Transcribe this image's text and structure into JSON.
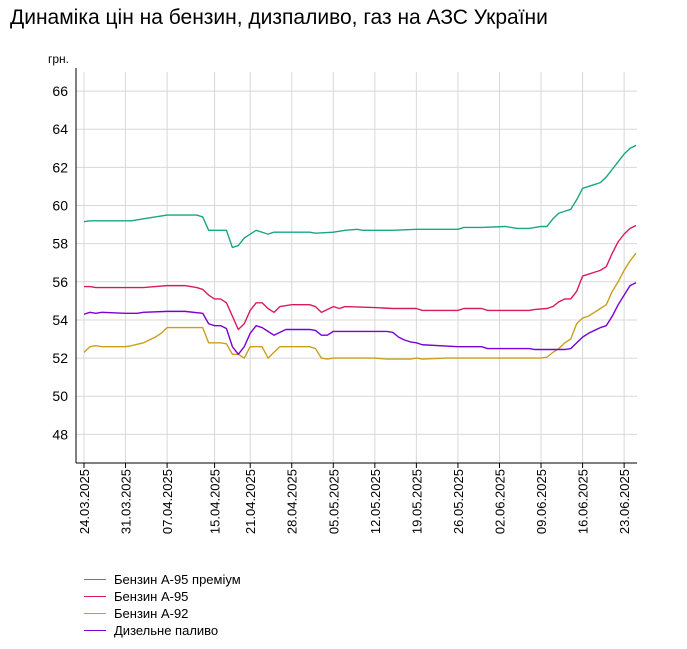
{
  "title": "Динаміка цін на бензин, дизпаливо, газ на АЗС України",
  "chart_data": {
    "type": "line",
    "title": "Динаміка цін на бензин, дизпаливо, газ на АЗС України",
    "ylabel": "грн.",
    "xlabel": "",
    "ylim": [
      46.5,
      67
    ],
    "yticks": [
      48,
      50,
      52,
      54,
      56,
      58,
      60,
      62,
      64,
      66
    ],
    "x_start": "24.03.2025",
    "x_end": "25.06.2025",
    "x_ticks": [
      "24.03.2025",
      "31.03.2025",
      "07.04.2025",
      "15.04.2025",
      "21.04.2025",
      "28.04.2025",
      "05.05.2025",
      "12.05.2025",
      "19.05.2025",
      "26.05.2025",
      "02.06.2025",
      "09.06.2025",
      "16.06.2025",
      "23.06.2025"
    ],
    "grid": true,
    "legend_position": "bottom-left",
    "series": [
      {
        "name": "Бензин А-95 преміум",
        "color": "#1aa585",
        "points": [
          [
            "24.03.2025",
            59.15
          ],
          [
            "25.03.2025",
            59.2
          ],
          [
            "28.03.2025",
            59.2
          ],
          [
            "01.04.2025",
            59.2
          ],
          [
            "03.04.2025",
            59.3
          ],
          [
            "05.04.2025",
            59.4
          ],
          [
            "07.04.2025",
            59.5
          ],
          [
            "09.04.2025",
            59.5
          ],
          [
            "12.04.2025",
            59.5
          ],
          [
            "13.04.2025",
            59.4
          ],
          [
            "14.04.2025",
            58.7
          ],
          [
            "15.04.2025",
            58.7
          ],
          [
            "17.04.2025",
            58.7
          ],
          [
            "18.04.2025",
            57.8
          ],
          [
            "19.04.2025",
            57.9
          ],
          [
            "20.04.2025",
            58.3
          ],
          [
            "22.04.2025",
            58.7
          ],
          [
            "24.04.2025",
            58.5
          ],
          [
            "25.04.2025",
            58.6
          ],
          [
            "28.04.2025",
            58.6
          ],
          [
            "01.05.2025",
            58.6
          ],
          [
            "02.05.2025",
            58.55
          ],
          [
            "05.05.2025",
            58.6
          ],
          [
            "07.05.2025",
            58.7
          ],
          [
            "09.05.2025",
            58.75
          ],
          [
            "10.05.2025",
            58.7
          ],
          [
            "12.05.2025",
            58.7
          ],
          [
            "15.05.2025",
            58.7
          ],
          [
            "19.05.2025",
            58.75
          ],
          [
            "23.05.2025",
            58.75
          ],
          [
            "26.05.2025",
            58.75
          ],
          [
            "27.05.2025",
            58.85
          ],
          [
            "30.05.2025",
            58.85
          ],
          [
            "03.06.2025",
            58.9
          ],
          [
            "05.06.2025",
            58.8
          ],
          [
            "07.06.2025",
            58.8
          ],
          [
            "09.06.2025",
            58.9
          ],
          [
            "10.06.2025",
            58.9
          ],
          [
            "11.06.2025",
            59.3
          ],
          [
            "12.06.2025",
            59.6
          ],
          [
            "13.06.2025",
            59.7
          ],
          [
            "14.06.2025",
            59.8
          ],
          [
            "15.06.2025",
            60.3
          ],
          [
            "16.06.2025",
            60.9
          ],
          [
            "17.06.2025",
            61.0
          ],
          [
            "18.06.2025",
            61.1
          ],
          [
            "19.06.2025",
            61.2
          ],
          [
            "20.06.2025",
            61.5
          ],
          [
            "21.06.2025",
            61.9
          ],
          [
            "22.06.2025",
            62.3
          ],
          [
            "23.06.2025",
            62.7
          ],
          [
            "24.06.2025",
            63.0
          ],
          [
            "25.06.2025",
            63.15
          ]
        ]
      },
      {
        "name": "Бензин А-95",
        "color": "#d81b60",
        "points": [
          [
            "24.03.2025",
            55.75
          ],
          [
            "25.03.2025",
            55.75
          ],
          [
            "26.03.2025",
            55.7
          ],
          [
            "31.03.2025",
            55.7
          ],
          [
            "03.04.2025",
            55.7
          ],
          [
            "05.04.2025",
            55.75
          ],
          [
            "07.04.2025",
            55.8
          ],
          [
            "10.04.2025",
            55.8
          ],
          [
            "12.04.2025",
            55.7
          ],
          [
            "13.04.2025",
            55.6
          ],
          [
            "14.04.2025",
            55.3
          ],
          [
            "15.04.2025",
            55.1
          ],
          [
            "16.04.2025",
            55.1
          ],
          [
            "17.04.2025",
            54.9
          ],
          [
            "18.04.2025",
            54.2
          ],
          [
            "19.04.2025",
            53.5
          ],
          [
            "20.04.2025",
            53.8
          ],
          [
            "21.04.2025",
            54.5
          ],
          [
            "22.04.2025",
            54.9
          ],
          [
            "23.04.2025",
            54.9
          ],
          [
            "24.04.2025",
            54.6
          ],
          [
            "25.04.2025",
            54.4
          ],
          [
            "26.04.2025",
            54.7
          ],
          [
            "28.04.2025",
            54.8
          ],
          [
            "01.05.2025",
            54.8
          ],
          [
            "02.05.2025",
            54.7
          ],
          [
            "03.05.2025",
            54.4
          ],
          [
            "05.05.2025",
            54.7
          ],
          [
            "06.05.2025",
            54.6
          ],
          [
            "07.05.2025",
            54.7
          ],
          [
            "12.05.2025",
            54.65
          ],
          [
            "15.05.2025",
            54.6
          ],
          [
            "19.05.2025",
            54.6
          ],
          [
            "20.05.2025",
            54.5
          ],
          [
            "26.05.2025",
            54.5
          ],
          [
            "27.05.2025",
            54.6
          ],
          [
            "30.05.2025",
            54.6
          ],
          [
            "31.05.2025",
            54.5
          ],
          [
            "02.06.2025",
            54.5
          ],
          [
            "07.06.2025",
            54.5
          ],
          [
            "08.06.2025",
            54.55
          ],
          [
            "10.06.2025",
            54.6
          ],
          [
            "11.06.2025",
            54.7
          ],
          [
            "12.06.2025",
            54.95
          ],
          [
            "13.06.2025",
            55.1
          ],
          [
            "14.06.2025",
            55.1
          ],
          [
            "15.06.2025",
            55.5
          ],
          [
            "16.06.2025",
            56.3
          ],
          [
            "17.06.2025",
            56.4
          ],
          [
            "18.06.2025",
            56.5
          ],
          [
            "19.06.2025",
            56.6
          ],
          [
            "20.06.2025",
            56.8
          ],
          [
            "21.06.2025",
            57.5
          ],
          [
            "22.06.2025",
            58.1
          ],
          [
            "23.06.2025",
            58.5
          ],
          [
            "24.06.2025",
            58.8
          ],
          [
            "25.06.2025",
            58.95
          ]
        ]
      },
      {
        "name": "Бензин А-92",
        "color": "#c8a01e",
        "points": [
          [
            "24.03.2025",
            52.3
          ],
          [
            "25.03.2025",
            52.6
          ],
          [
            "26.03.2025",
            52.65
          ],
          [
            "27.03.2025",
            52.6
          ],
          [
            "31.03.2025",
            52.6
          ],
          [
            "01.04.2025",
            52.65
          ],
          [
            "03.04.2025",
            52.8
          ],
          [
            "05.04.2025",
            53.1
          ],
          [
            "06.04.2025",
            53.3
          ],
          [
            "07.04.2025",
            53.6
          ],
          [
            "11.04.2025",
            53.6
          ],
          [
            "13.04.2025",
            53.6
          ],
          [
            "14.04.2025",
            52.8
          ],
          [
            "15.04.2025",
            52.8
          ],
          [
            "16.04.2025",
            52.8
          ],
          [
            "17.04.2025",
            52.75
          ],
          [
            "18.04.2025",
            52.2
          ],
          [
            "19.04.2025",
            52.2
          ],
          [
            "20.04.2025",
            52.0
          ],
          [
            "21.04.2025",
            52.6
          ],
          [
            "22.04.2025",
            52.6
          ],
          [
            "23.04.2025",
            52.6
          ],
          [
            "24.04.2025",
            52.0
          ],
          [
            "25.04.2025",
            52.3
          ],
          [
            "26.04.2025",
            52.6
          ],
          [
            "01.05.2025",
            52.6
          ],
          [
            "02.05.2025",
            52.5
          ],
          [
            "03.05.2025",
            52.0
          ],
          [
            "04.05.2025",
            51.95
          ],
          [
            "05.05.2025",
            52.0
          ],
          [
            "12.05.2025",
            52.0
          ],
          [
            "14.05.2025",
            51.95
          ],
          [
            "18.05.2025",
            51.95
          ],
          [
            "19.05.2025",
            52.0
          ],
          [
            "20.05.2025",
            51.95
          ],
          [
            "24.05.2025",
            52.0
          ],
          [
            "09.06.2025",
            52.0
          ],
          [
            "10.06.2025",
            52.05
          ],
          [
            "11.06.2025",
            52.3
          ],
          [
            "12.06.2025",
            52.5
          ],
          [
            "13.06.2025",
            52.8
          ],
          [
            "14.06.2025",
            53.0
          ],
          [
            "15.06.2025",
            53.8
          ],
          [
            "16.06.2025",
            54.1
          ],
          [
            "17.06.2025",
            54.2
          ],
          [
            "18.06.2025",
            54.4
          ],
          [
            "19.06.2025",
            54.6
          ],
          [
            "20.06.2025",
            54.8
          ],
          [
            "21.06.2025",
            55.5
          ],
          [
            "22.06.2025",
            56.0
          ],
          [
            "23.06.2025",
            56.6
          ],
          [
            "24.06.2025",
            57.1
          ],
          [
            "25.06.2025",
            57.5
          ]
        ]
      },
      {
        "name": "Дизельне паливо",
        "color": "#7b00d4",
        "points": [
          [
            "24.03.2025",
            54.3
          ],
          [
            "25.03.2025",
            54.4
          ],
          [
            "26.03.2025",
            54.35
          ],
          [
            "27.03.2025",
            54.4
          ],
          [
            "31.03.2025",
            54.35
          ],
          [
            "02.04.2025",
            54.35
          ],
          [
            "03.04.2025",
            54.4
          ],
          [
            "07.04.2025",
            54.45
          ],
          [
            "10.04.2025",
            54.45
          ],
          [
            "13.04.2025",
            54.35
          ],
          [
            "14.04.2025",
            53.8
          ],
          [
            "15.04.2025",
            53.7
          ],
          [
            "16.04.2025",
            53.7
          ],
          [
            "17.04.2025",
            53.55
          ],
          [
            "18.04.2025",
            52.6
          ],
          [
            "19.04.2025",
            52.2
          ],
          [
            "20.04.2025",
            52.6
          ],
          [
            "21.04.2025",
            53.3
          ],
          [
            "22.04.2025",
            53.7
          ],
          [
            "23.04.2025",
            53.6
          ],
          [
            "24.04.2025",
            53.4
          ],
          [
            "25.04.2025",
            53.2
          ],
          [
            "26.04.2025",
            53.35
          ],
          [
            "27.04.2025",
            53.5
          ],
          [
            "01.05.2025",
            53.5
          ],
          [
            "02.05.2025",
            53.45
          ],
          [
            "03.05.2025",
            53.2
          ],
          [
            "04.05.2025",
            53.2
          ],
          [
            "05.05.2025",
            53.4
          ],
          [
            "14.05.2025",
            53.4
          ],
          [
            "15.05.2025",
            53.35
          ],
          [
            "16.05.2025",
            53.1
          ],
          [
            "17.05.2025",
            52.95
          ],
          [
            "18.05.2025",
            52.85
          ],
          [
            "19.05.2025",
            52.8
          ],
          [
            "20.05.2025",
            52.7
          ],
          [
            "26.05.2025",
            52.6
          ],
          [
            "30.05.2025",
            52.6
          ],
          [
            "31.05.2025",
            52.5
          ],
          [
            "07.06.2025",
            52.5
          ],
          [
            "08.06.2025",
            52.45
          ],
          [
            "13.06.2025",
            52.45
          ],
          [
            "14.06.2025",
            52.5
          ],
          [
            "15.06.2025",
            52.8
          ],
          [
            "16.06.2025",
            53.1
          ],
          [
            "17.06.2025",
            53.3
          ],
          [
            "18.06.2025",
            53.45
          ],
          [
            "19.06.2025",
            53.6
          ],
          [
            "20.06.2025",
            53.7
          ],
          [
            "21.06.2025",
            54.2
          ],
          [
            "22.06.2025",
            54.8
          ],
          [
            "23.06.2025",
            55.3
          ],
          [
            "24.06.2025",
            55.8
          ],
          [
            "25.06.2025",
            55.95
          ]
        ]
      }
    ]
  }
}
